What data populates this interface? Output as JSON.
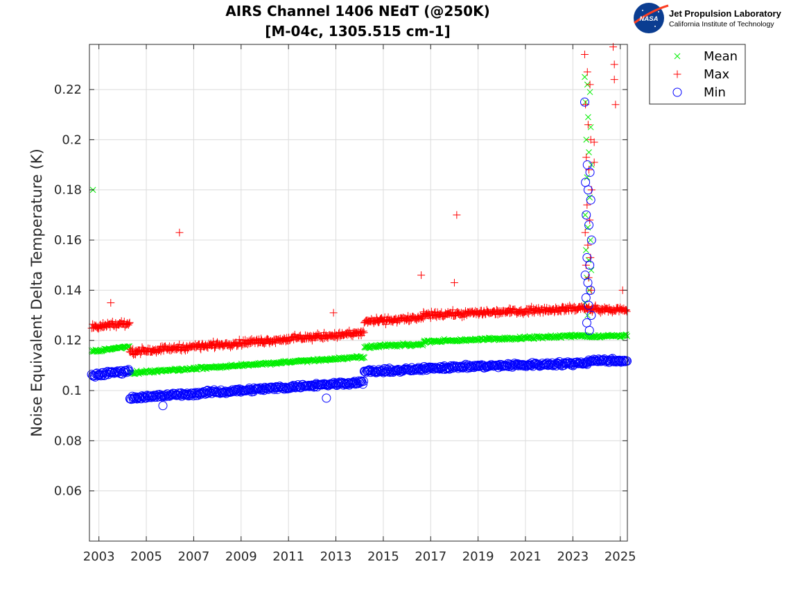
{
  "logo": {
    "nasa_text": "NASA",
    "main": "Jet Propulsion Laboratory",
    "sub": "California Institute of Technology"
  },
  "chart_data": {
    "type": "scatter",
    "title": "AIRS Channel 1406 NEdT (@250K)",
    "subtitle": "[M-04c, 1305.515 cm-1]",
    "xlabel": "",
    "ylabel": "Noise Equivalent Delta Temperature (K)",
    "xlim": [
      2002.6,
      2025.3
    ],
    "ylim": [
      0.04,
      0.238
    ],
    "xticks": [
      2003,
      2005,
      2007,
      2009,
      2011,
      2013,
      2015,
      2017,
      2019,
      2021,
      2023,
      2025
    ],
    "xtick_labels": [
      "2003",
      "2005",
      "2007",
      "2009",
      "2011",
      "2013",
      "2015",
      "2017",
      "2019",
      "2021",
      "2023",
      "2025"
    ],
    "yticks": [
      0.06,
      0.08,
      0.1,
      0.12,
      0.14,
      0.16,
      0.18,
      0.2,
      0.22
    ],
    "ytick_labels": [
      "0.06",
      "0.08",
      "0.1",
      "0.12",
      "0.14",
      "0.16",
      "0.18",
      "0.2",
      "0.22"
    ],
    "grid": true,
    "legend_position": "outside-top-right",
    "segments": [
      {
        "x0": 2002.7,
        "x1": 2004.3,
        "mean0": 0.1155,
        "mean1": 0.1175,
        "max0": 0.125,
        "max1": 0.127,
        "min0": 0.106,
        "min1": 0.108
      },
      {
        "x0": 2004.3,
        "x1": 2014.2,
        "mean0": 0.107,
        "mean1": 0.1135,
        "max0": 0.1155,
        "max1": 0.123,
        "min0": 0.097,
        "min1": 0.1035
      },
      {
        "x0": 2014.2,
        "x1": 2016.7,
        "mean0": 0.1175,
        "mean1": 0.1185,
        "max0": 0.1275,
        "max1": 0.129,
        "min0": 0.1075,
        "min1": 0.1085
      },
      {
        "x0": 2016.7,
        "x1": 2023.6,
        "mean0": 0.1195,
        "mean1": 0.122,
        "max0": 0.13,
        "max1": 0.133,
        "min0": 0.109,
        "min1": 0.111
      },
      {
        "x0": 2023.6,
        "x1": 2025.3,
        "mean0": 0.1215,
        "mean1": 0.122,
        "max0": 0.1325,
        "max1": 0.132,
        "min0": 0.112,
        "min1": 0.112
      }
    ],
    "spike": {
      "x0": 2023.5,
      "x1": 2023.8,
      "mean_values": [
        0.225,
        0.222,
        0.219,
        0.215,
        0.209,
        0.205,
        0.2,
        0.195,
        0.19,
        0.185,
        0.177,
        0.17,
        0.165,
        0.16,
        0.156,
        0.152,
        0.148,
        0.145,
        0.14,
        0.135,
        0.13
      ],
      "max_values": [
        0.234,
        0.227,
        0.222,
        0.214,
        0.206,
        0.2,
        0.193,
        0.188,
        0.18,
        0.174,
        0.168,
        0.163,
        0.158,
        0.153,
        0.15,
        0.145,
        0.14
      ],
      "min_values": [
        0.215,
        0.19,
        0.187,
        0.183,
        0.18,
        0.176,
        0.17,
        0.166,
        0.16,
        0.153,
        0.15,
        0.146,
        0.143,
        0.14,
        0.137,
        0.134,
        0.13,
        0.127,
        0.124
      ]
    },
    "outliers": {
      "mean": [
        {
          "x": 2002.75,
          "y": 0.18
        }
      ],
      "max": [
        {
          "x": 2006.4,
          "y": 0.163
        },
        {
          "x": 2018.1,
          "y": 0.17
        },
        {
          "x": 2016.6,
          "y": 0.146
        },
        {
          "x": 2003.5,
          "y": 0.135
        },
        {
          "x": 2018.0,
          "y": 0.143
        },
        {
          "x": 2024.7,
          "y": 0.237
        },
        {
          "x": 2024.75,
          "y": 0.23
        },
        {
          "x": 2024.75,
          "y": 0.224
        },
        {
          "x": 2024.8,
          "y": 0.214
        },
        {
          "x": 2023.9,
          "y": 0.199
        },
        {
          "x": 2023.9,
          "y": 0.191
        },
        {
          "x": 2025.1,
          "y": 0.14
        },
        {
          "x": 2012.9,
          "y": 0.131
        }
      ],
      "min": [
        {
          "x": 2012.6,
          "y": 0.097
        },
        {
          "x": 2005.7,
          "y": 0.094
        }
      ]
    },
    "series": [
      {
        "name": "Mean",
        "marker": "x",
        "color": "#00ee00"
      },
      {
        "name": "Max",
        "marker": "+",
        "color": "#ff0000"
      },
      {
        "name": "Min",
        "marker": "o",
        "color": "#0000ff"
      }
    ]
  }
}
